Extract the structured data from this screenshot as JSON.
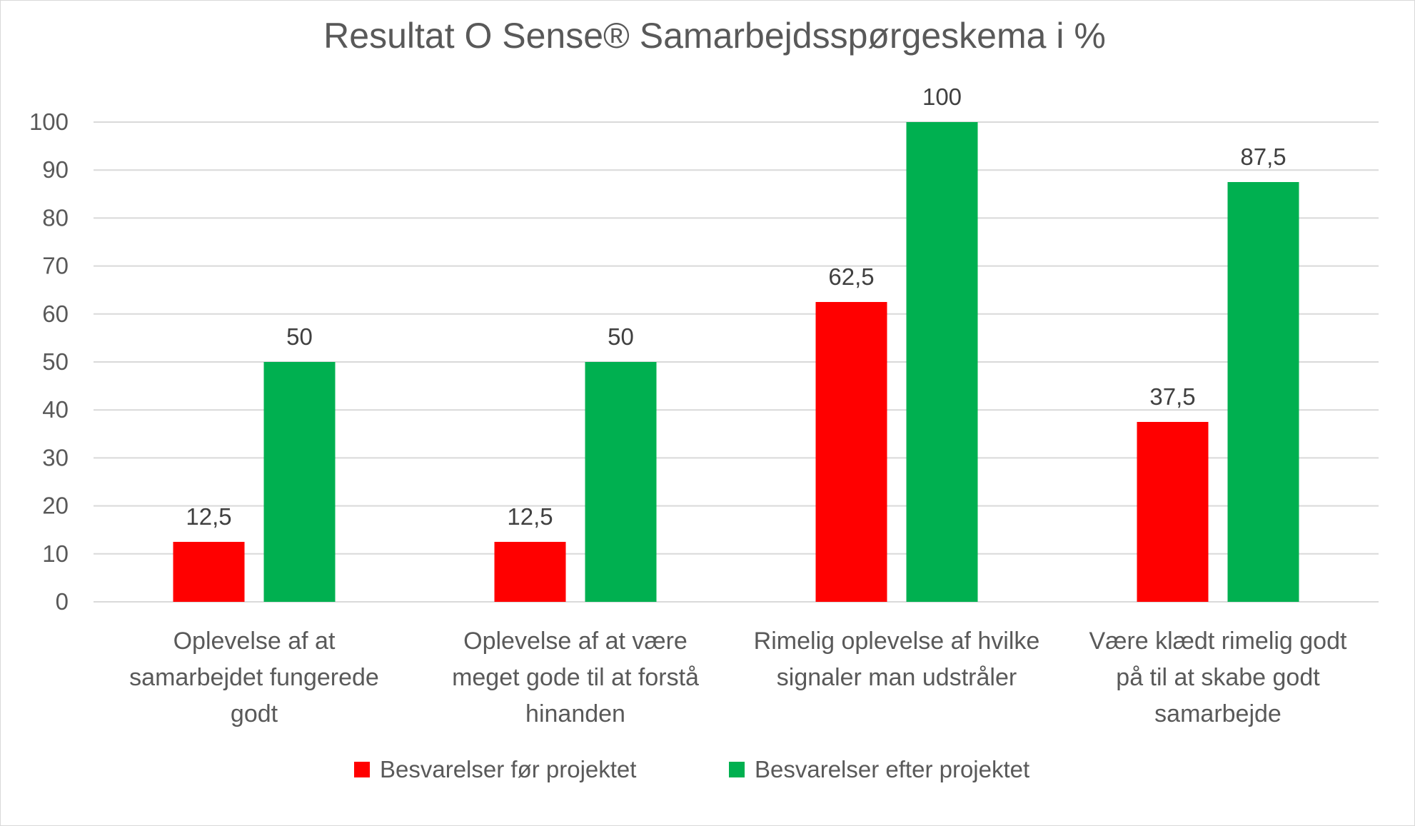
{
  "chart_data": {
    "type": "bar",
    "title": "Resultat O Sense® Samarbejdsspørgeskema i %",
    "categories": [
      [
        "Oplevelse af at",
        "samarbejdet fungerede",
        "godt"
      ],
      [
        "Oplevelse af at være",
        "meget gode til at forstå",
        "hinanden"
      ],
      [
        "Rimelig oplevelse af hvilke",
        "signaler man udstråler"
      ],
      [
        "Være klædt rimelig godt",
        "på til at skabe godt",
        "samarbejde"
      ]
    ],
    "series": [
      {
        "name": "Besvarelser før projektet",
        "color": "#ff0000",
        "values": [
          12.5,
          12.5,
          62.5,
          37.5
        ],
        "labels": [
          "12,5",
          "12,5",
          "62,5",
          "37,5"
        ]
      },
      {
        "name": "Besvarelser efter projektet",
        "color": "#00b050",
        "values": [
          50,
          50,
          100,
          87.5
        ],
        "labels": [
          "50",
          "50",
          "100",
          "87,5"
        ]
      }
    ],
    "ylim": [
      0,
      100
    ],
    "yticks": [
      0,
      10,
      20,
      30,
      40,
      50,
      60,
      70,
      80,
      90,
      100
    ],
    "grid": true,
    "legend_position": "bottom"
  }
}
